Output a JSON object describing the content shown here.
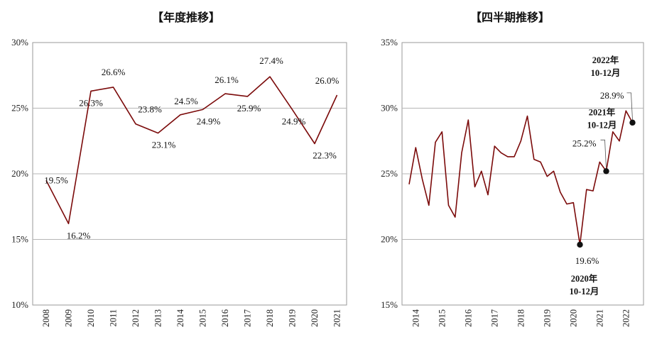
{
  "chart_data": [
    {
      "type": "line",
      "title": "【年度推移】",
      "x": [
        "2008",
        "2009",
        "2010",
        "2011",
        "2012",
        "2013",
        "2014",
        "2015",
        "2016",
        "2017",
        "2018",
        "2019",
        "2020",
        "2021"
      ],
      "series": [
        {
          "values": [
            19.5,
            16.2,
            26.3,
            26.6,
            23.8,
            23.1,
            24.5,
            24.9,
            26.1,
            25.9,
            27.4,
            24.9,
            22.3,
            26.0
          ]
        }
      ],
      "data_labels": [
        "19.5%",
        "16.2%",
        "26.3%",
        "26.6%",
        "23.8%",
        "23.1%",
        "24.5%",
        "24.9%",
        "26.1%",
        "25.9%",
        "27.4%",
        "24.9%",
        "22.3%",
        "26.0%"
      ],
      "ylim": [
        10,
        30
      ],
      "yticks": [
        10,
        15,
        20,
        25,
        30
      ],
      "ytick_labels": [
        "10%",
        "15%",
        "20%",
        "25%",
        "30%"
      ],
      "grid": true,
      "line_color": "#7b0a0a"
    },
    {
      "type": "line",
      "title": "【四半期推移】",
      "x_tick_labels": [
        "2014",
        "2015",
        "2016",
        "2017",
        "2018",
        "2019",
        "2020",
        "2021",
        "2022"
      ],
      "quarter_start": "2013-12",
      "series": [
        {
          "values": [
            24.2,
            27.0,
            24.6,
            22.6,
            27.4,
            28.2,
            22.6,
            21.7,
            26.6,
            29.1,
            24.0,
            25.2,
            23.4,
            27.1,
            26.6,
            26.3,
            26.3,
            27.5,
            29.4,
            26.1,
            25.9,
            24.8,
            25.2,
            23.6,
            22.7,
            22.8,
            19.6,
            23.8,
            23.7,
            25.9,
            25.2,
            28.2,
            27.5,
            29.8,
            28.9
          ]
        }
      ],
      "highlights": [
        {
          "index": 26,
          "value_label": "19.6%",
          "period": [
            "2020年",
            "10-12月"
          ]
        },
        {
          "index": 30,
          "value_label": "25.2%",
          "period": [
            "2021年",
            "10-12月"
          ]
        },
        {
          "index": 34,
          "value_label": "28.9%",
          "period": [
            "2022年",
            "10-12月"
          ]
        }
      ],
      "ylim": [
        15,
        35
      ],
      "yticks": [
        15,
        20,
        25,
        30,
        35
      ],
      "ytick_labels": [
        "15%",
        "20%",
        "25%",
        "30%",
        "35%"
      ],
      "grid": true,
      "line_color": "#7b0a0a"
    }
  ]
}
